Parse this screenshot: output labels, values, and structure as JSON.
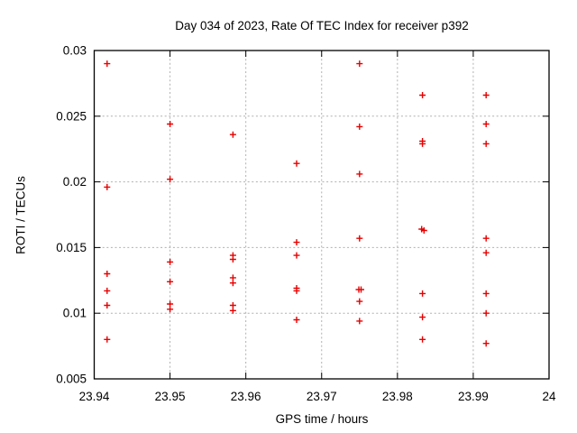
{
  "chart_data": {
    "type": "scatter",
    "title": "Day 034 of 2023, Rate Of TEC Index for receiver p392",
    "xlabel": "GPS time / hours",
    "ylabel": "ROTI / TECUs",
    "xlim": [
      23.94,
      24
    ],
    "ylim": [
      0.005,
      0.03
    ],
    "grid": true,
    "legend_position": "none",
    "marker": {
      "shape": "plus",
      "color": "#e60000",
      "size": 7,
      "stroke_width": 1.4
    },
    "grid_color": "#b0b0b0",
    "border_color": "#000000",
    "x_ticks": [
      {
        "value": 23.94,
        "label": "23.94"
      },
      {
        "value": 23.95,
        "label": "23.95"
      },
      {
        "value": 23.96,
        "label": "23.96"
      },
      {
        "value": 23.97,
        "label": "23.97"
      },
      {
        "value": 23.98,
        "label": "23.98"
      },
      {
        "value": 23.99,
        "label": "23.99"
      },
      {
        "value": 24,
        "label": "24"
      }
    ],
    "y_ticks": [
      {
        "value": 0.005,
        "label": "0.005"
      },
      {
        "value": 0.01,
        "label": "0.01"
      },
      {
        "value": 0.015,
        "label": "0.015"
      },
      {
        "value": 0.02,
        "label": "0.02"
      },
      {
        "value": 0.025,
        "label": "0.025"
      },
      {
        "value": 0.03,
        "label": "0.03"
      }
    ],
    "series": [
      {
        "name": "ROTI",
        "points": [
          [
            23.9417,
            0.029
          ],
          [
            23.9417,
            0.0196
          ],
          [
            23.9417,
            0.013
          ],
          [
            23.9417,
            0.0117
          ],
          [
            23.9417,
            0.0106
          ],
          [
            23.9417,
            0.008
          ],
          [
            23.95,
            0.0244
          ],
          [
            23.95,
            0.0202
          ],
          [
            23.95,
            0.0139
          ],
          [
            23.95,
            0.0124
          ],
          [
            23.95,
            0.0107
          ],
          [
            23.95,
            0.0103
          ],
          [
            23.9583,
            0.0236
          ],
          [
            23.9583,
            0.0144
          ],
          [
            23.9583,
            0.0141
          ],
          [
            23.9583,
            0.0127
          ],
          [
            23.9583,
            0.0123
          ],
          [
            23.9583,
            0.0106
          ],
          [
            23.9583,
            0.0102
          ],
          [
            23.9667,
            0.0214
          ],
          [
            23.9667,
            0.0154
          ],
          [
            23.9667,
            0.0144
          ],
          [
            23.9667,
            0.0119
          ],
          [
            23.9667,
            0.0117
          ],
          [
            23.9667,
            0.0095
          ],
          [
            23.975,
            0.029
          ],
          [
            23.975,
            0.0242
          ],
          [
            23.975,
            0.0206
          ],
          [
            23.975,
            0.0157
          ],
          [
            23.9749,
            0.0118
          ],
          [
            23.9752,
            0.0118
          ],
          [
            23.975,
            0.0109
          ],
          [
            23.975,
            0.0094
          ],
          [
            23.9833,
            0.0266
          ],
          [
            23.9833,
            0.0231
          ],
          [
            23.9833,
            0.0229
          ],
          [
            23.9832,
            0.0164
          ],
          [
            23.9835,
            0.0163
          ],
          [
            23.9833,
            0.0115
          ],
          [
            23.9833,
            0.0097
          ],
          [
            23.9833,
            0.008
          ],
          [
            23.9917,
            0.0266
          ],
          [
            23.9917,
            0.0244
          ],
          [
            23.9917,
            0.0229
          ],
          [
            23.9917,
            0.0157
          ],
          [
            23.9917,
            0.0146
          ],
          [
            23.9917,
            0.0115
          ],
          [
            23.9917,
            0.01
          ],
          [
            23.9917,
            0.0077
          ]
        ]
      }
    ]
  }
}
